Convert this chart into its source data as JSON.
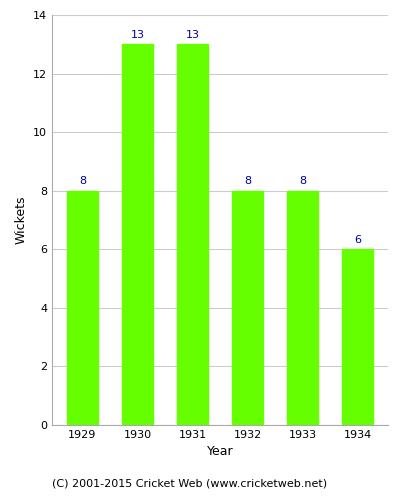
{
  "years": [
    "1929",
    "1930",
    "1931",
    "1932",
    "1933",
    "1934"
  ],
  "wickets": [
    8,
    13,
    13,
    8,
    8,
    6
  ],
  "bar_color": "#66FF00",
  "label_color": "#000099",
  "xlabel": "Year",
  "ylabel": "Wickets",
  "ylim": [
    0,
    14
  ],
  "yticks": [
    0,
    2,
    4,
    6,
    8,
    10,
    12,
    14
  ],
  "grid_color": "#cccccc",
  "background_color": "#ffffff",
  "footer": "(C) 2001-2015 Cricket Web (www.cricketweb.net)",
  "label_fontsize": 8,
  "axis_label_fontsize": 9,
  "tick_fontsize": 8,
  "footer_fontsize": 8,
  "bar_width": 0.55
}
